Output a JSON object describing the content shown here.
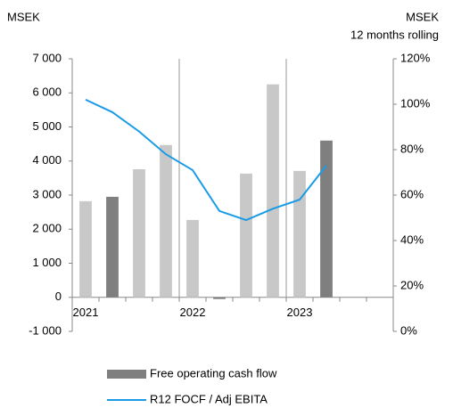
{
  "chart_data": {
    "type": "bar",
    "left_axis_label": "MSEK",
    "right_axis_label": "MSEK",
    "right_axis_sublabel": "12 months rolling",
    "categories": [
      "2021",
      null,
      null,
      null,
      "2022",
      null,
      null,
      null,
      "2023",
      null,
      null,
      null
    ],
    "series": [
      {
        "name": "Free operating cash flow",
        "type": "bar",
        "color": "#7f7f7f",
        "colors": [
          "#c8c8c8",
          "#7f7f7f",
          "#c8c8c8",
          "#c8c8c8",
          "#c8c8c8",
          "#7f7f7f",
          "#c8c8c8",
          "#c8c8c8",
          "#c8c8c8",
          "#7f7f7f",
          null,
          null
        ],
        "values": [
          2820,
          2950,
          3760,
          4470,
          2270,
          -50,
          3630,
          6250,
          3710,
          4600,
          null,
          null
        ]
      },
      {
        "name": "R12 FOCF / Adj EBITA",
        "type": "line",
        "color": "#1a9be6",
        "axis": "y2",
        "values": [
          102,
          96.5,
          88,
          78,
          71,
          53,
          49,
          54,
          58,
          73,
          null,
          null
        ]
      }
    ],
    "ylim": [
      -1000,
      7000
    ],
    "yticks": [
      {
        "value": -1000,
        "label": "-1 000"
      },
      0,
      {
        "value": 1000,
        "label": "1 000"
      },
      {
        "value": 2000,
        "label": "2 000"
      },
      {
        "value": 3000,
        "label": "3 000"
      },
      {
        "value": 4000,
        "label": "4 000"
      },
      {
        "value": 5000,
        "label": "5 000"
      },
      {
        "value": 6000,
        "label": "6 000"
      },
      {
        "value": 7000,
        "label": "7 000"
      }
    ],
    "y2lim": [
      0,
      120
    ],
    "y2ticks": [
      {
        "value": 0,
        "label": "0%"
      },
      {
        "value": 20,
        "label": "20%"
      },
      {
        "value": 40,
        "label": "40%"
      },
      {
        "value": 60,
        "label": "60%"
      },
      {
        "value": 80,
        "label": "80%"
      },
      {
        "value": 100,
        "label": "100%"
      },
      {
        "value": 120,
        "label": "120%"
      }
    ],
    "grid": false
  }
}
